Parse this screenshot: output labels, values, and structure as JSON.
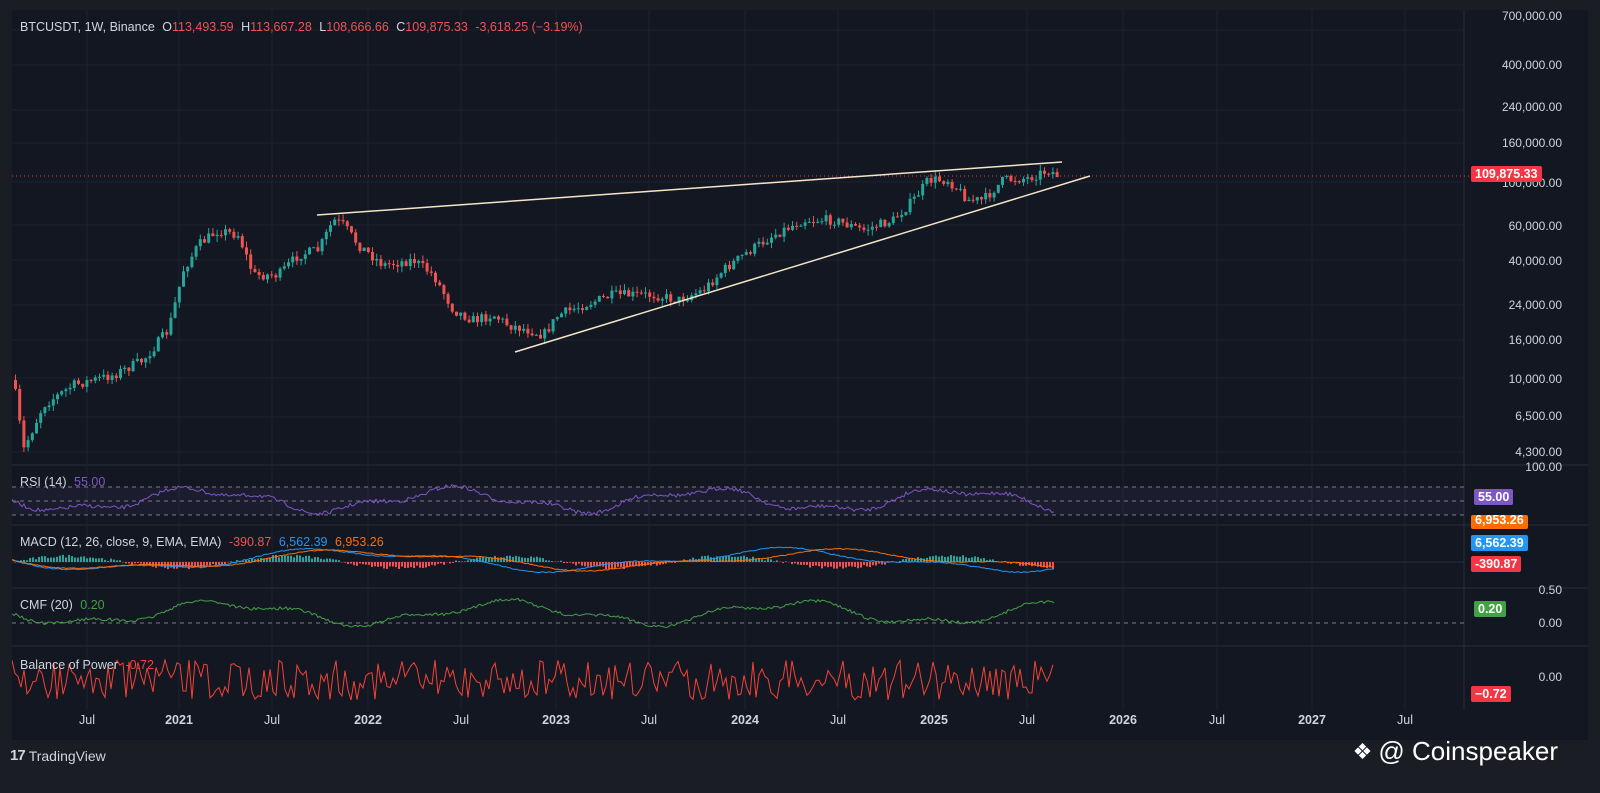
{
  "symbol_header": {
    "symbol": "BTCUSDT, 1W, Binance",
    "open_label": "O",
    "open": "113,493.59",
    "high_label": "H",
    "high": "113,667.28",
    "low_label": "L",
    "low": "108,666.66",
    "close_label": "C",
    "close": "109,875.33",
    "change": "-3,618.25 (−3.19%)"
  },
  "price_axis": [
    "700,000.00",
    "400,000.00",
    "240,000.00",
    "160,000.00",
    "100,000.00",
    "60,000.00",
    "40,000.00",
    "24,000.00",
    "16,000.00",
    "10,000.00",
    "6,500.00",
    "4,300.00"
  ],
  "price_tag": "109,875.33",
  "rsi": {
    "label": "RSI (14)",
    "value": "55.00",
    "axis_top": "100.00",
    "tag": "55.00"
  },
  "macd": {
    "label": "MACD (12, 26, close, 9, EMA, EMA)",
    "hist": "-390.87",
    "macd": "6,562.39",
    "signal": "6,953.26",
    "tag_signal": "6,953.26",
    "tag_macd": "6,562.39",
    "tag_hist": "-390.87"
  },
  "cmf": {
    "label": "CMF (20)",
    "value": "0.20",
    "axis_top": "0.50",
    "axis_zero": "0.00",
    "tag": "0.20"
  },
  "bop": {
    "label": "Balance of Power",
    "value": "-0.72",
    "axis_zero": "0.00",
    "tag": "−0.72"
  },
  "time_axis": [
    "Jul",
    "2021",
    "Jul",
    "2022",
    "Jul",
    "2023",
    "Jul",
    "2024",
    "Jul",
    "2025",
    "Jul",
    "2026",
    "Jul",
    "2027",
    "Jul"
  ],
  "footer": {
    "brand": "TradingView",
    "watermark": "@ Coinspeaker"
  },
  "colors": {
    "up": "#26a69a",
    "down": "#ef5350",
    "rsi": "#7e57c2",
    "macd": "#2196f3",
    "signal": "#ff6d00",
    "cmf": "#43a047",
    "bop": "#f44336",
    "trend": "#f3e5c8"
  }
}
